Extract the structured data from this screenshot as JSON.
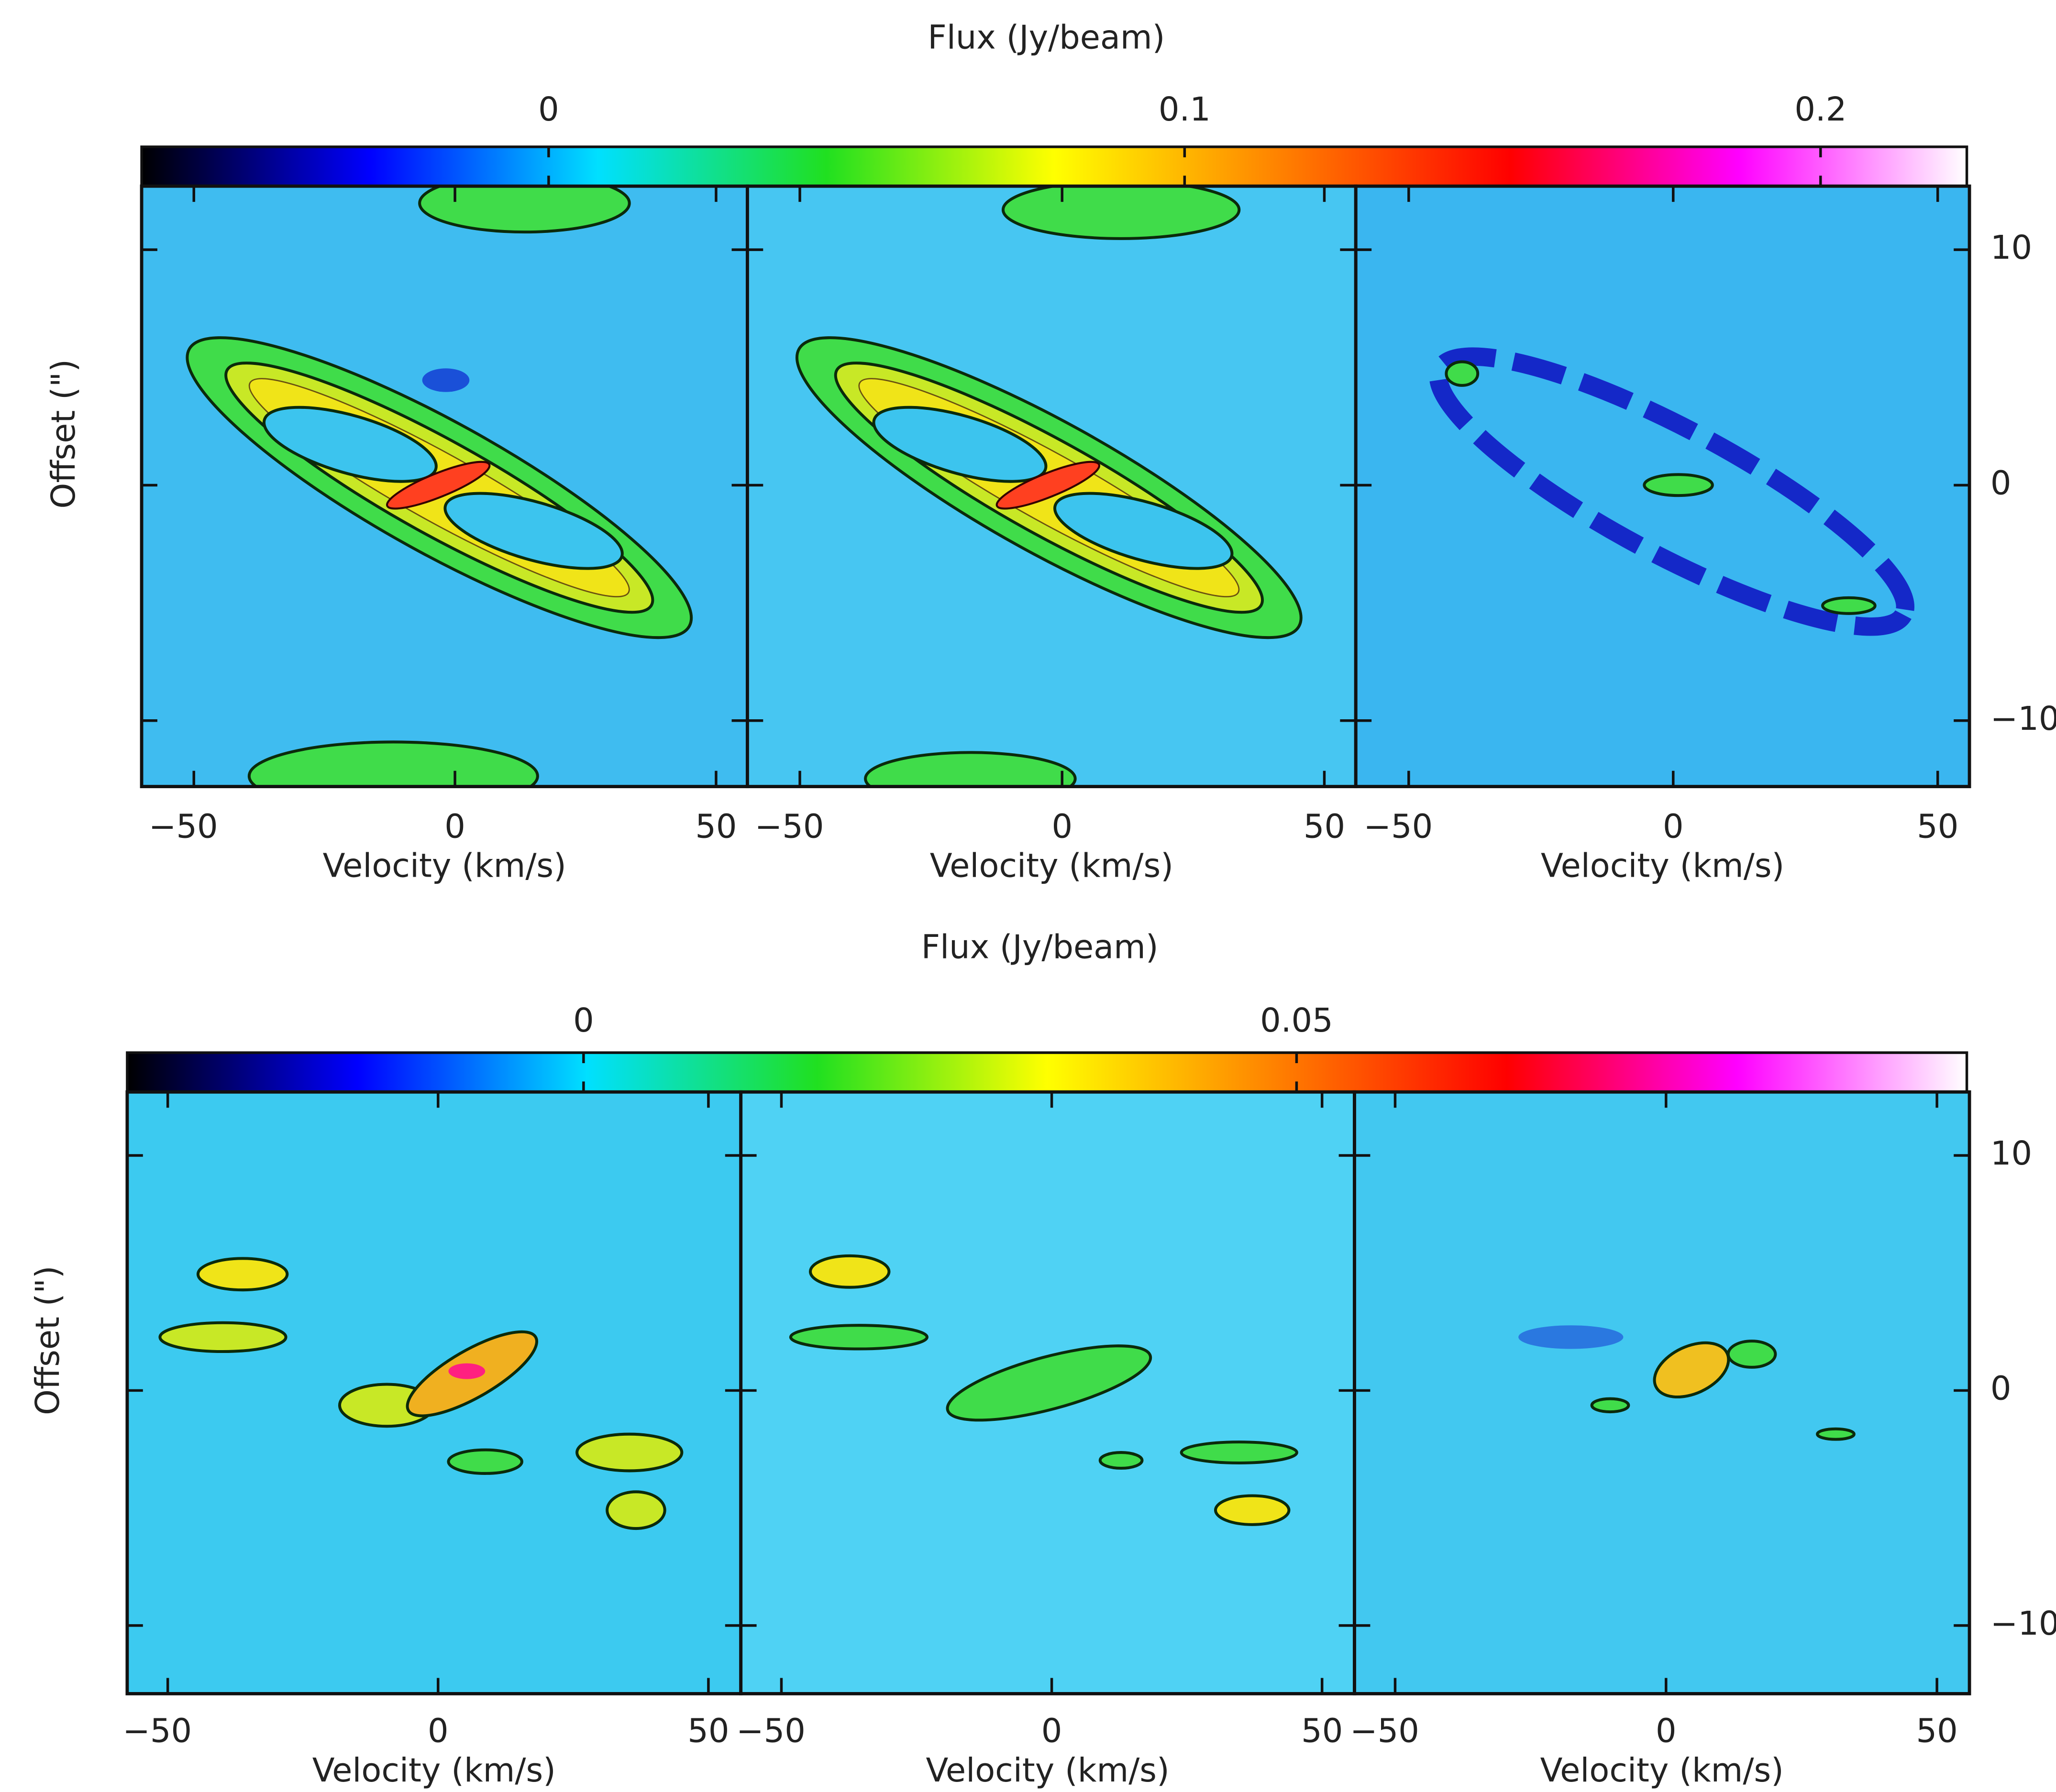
{
  "chart_data": [
    {
      "type": "heatmap",
      "title": "Flux (Jy/beam)",
      "colormap": [
        "#000000",
        "#0000ff",
        "#00e0ff",
        "#20e020",
        "#ffff00",
        "#ff8000",
        "#ff0000",
        "#ff00ff",
        "#ffffff"
      ],
      "clim": [
        -0.064,
        0.223
      ],
      "cticks": [
        0,
        0.1,
        0.2
      ],
      "ylabel": "Offset (\")",
      "ylim": [
        -12.8,
        12.7
      ],
      "yticks": [
        10,
        0,
        {
          "value": -10,
          "label": "−10"
        }
      ],
      "panels": [
        {
          "xlabel": "Velocity (km/s)",
          "xlim": [
            -60,
            56
          ],
          "xticks": [
            {
              "value": -50,
              "label": "−50"
            },
            0,
            50
          ]
        },
        {
          "xlabel": "Velocity (km/s)",
          "xlim": [
            -60,
            56
          ],
          "xticks": [
            {
              "value": -50,
              "label": "−50"
            },
            0,
            50
          ]
        },
        {
          "xlabel": "Velocity (km/s)",
          "xlim": [
            -60,
            56
          ],
          "xticks": [
            {
              "value": -50,
              "label": "−50"
            },
            0,
            50
          ]
        }
      ]
    },
    {
      "type": "heatmap",
      "title": "Flux (Jy/beam)",
      "colormap": [
        "#000000",
        "#0000ff",
        "#00e0ff",
        "#20e020",
        "#ffff00",
        "#ff8000",
        "#ff0000",
        "#ff00ff",
        "#ffffff"
      ],
      "clim": [
        -0.032,
        0.097
      ],
      "cticks": [
        0,
        0.05
      ],
      "ylabel": "Offset (\")",
      "ylim": [
        -12.9,
        12.7
      ],
      "yticks": [
        10,
        0,
        {
          "value": -10,
          "label": "−10"
        }
      ],
      "panels": [
        {
          "xlabel": "Velocity (km/s)",
          "xlim": [
            -57.5,
            56
          ],
          "xticks": [
            {
              "value": -50,
              "label": "−50"
            },
            0,
            50
          ]
        },
        {
          "xlabel": "Velocity (km/s)",
          "xlim": [
            -57.5,
            56
          ],
          "xticks": [
            {
              "value": -50,
              "label": "−50"
            },
            0,
            50
          ]
        },
        {
          "xlabel": "Velocity (km/s)",
          "xlim": [
            -57.5,
            56
          ],
          "xticks": [
            {
              "value": -50,
              "label": "−50"
            },
            0,
            50
          ]
        }
      ]
    }
  ]
}
